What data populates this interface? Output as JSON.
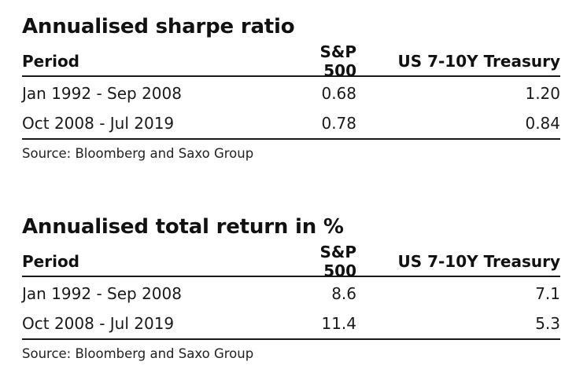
{
  "chart_data": [
    {
      "type": "table",
      "title": "Annualised sharpe ratio",
      "columns": [
        "Period",
        "S&P 500",
        "US 7-10Y Treasury"
      ],
      "rows": [
        [
          "Jan 1992 - Sep 2008",
          "0.68",
          "1.20"
        ],
        [
          "Oct 2008 - Jul 2019",
          "0.78",
          "0.84"
        ]
      ],
      "source": "Source: Bloomberg and Saxo Group"
    },
    {
      "type": "table",
      "title": "Annualised total return in %",
      "columns": [
        "Period",
        "S&P 500",
        "US 7-10Y Treasury"
      ],
      "rows": [
        [
          "Jan 1992 - Sep 2008",
          "8.6",
          "7.1"
        ],
        [
          "Oct 2008 - Jul 2019",
          "11.4",
          "5.3"
        ]
      ],
      "source": "Source: Bloomberg and Saxo Group"
    }
  ]
}
